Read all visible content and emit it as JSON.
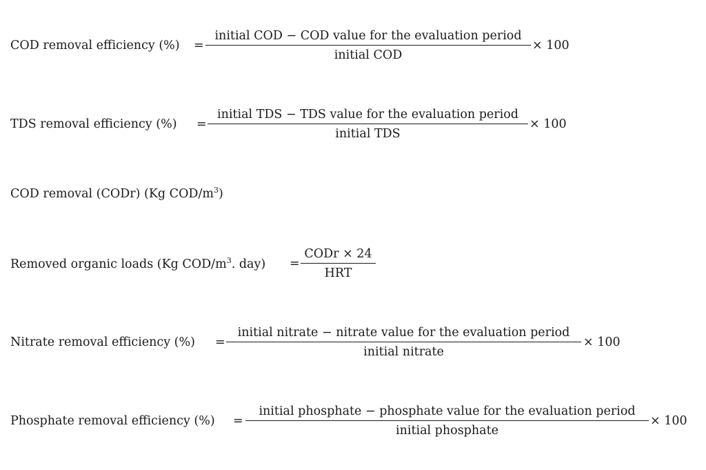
{
  "equations": [
    {
      "label": "COD removal efficiency (%)",
      "equals": "=",
      "numerator": "initial COD  −  COD value for the evaluation period",
      "denominator": "initial COD",
      "multiplier": "× 100"
    },
    {
      "label": "TDS removal efficiency (%)",
      "equals": "=",
      "numerator": "initial TDS  −  TDS value for the evaluation period",
      "denominator": "initial TDS",
      "multiplier": "× 100"
    },
    {
      "label_pre": "COD removal (CODr) (Kg COD/m",
      "label_sup": "3",
      "label_post": ")"
    },
    {
      "label_pre": "Removed organic loads (Kg COD/m",
      "label_sup": "3",
      "label_post": ". day)",
      "equals": "=",
      "numerator": "CODr × 24",
      "denominator": "HRT"
    },
    {
      "label": "Nitrate removal efficiency (%)",
      "equals": "=",
      "numerator": "initial nitrate  −  nitrate value for the evaluation period",
      "denominator": "initial nitrate",
      "multiplier": "× 100"
    },
    {
      "label": "Phosphate removal efficiency (%)",
      "equals": "=",
      "numerator": "initial phosphate  −  phosphate value for the evaluation period",
      "denominator": "initial phosphate",
      "multiplier": "× 100"
    }
  ]
}
